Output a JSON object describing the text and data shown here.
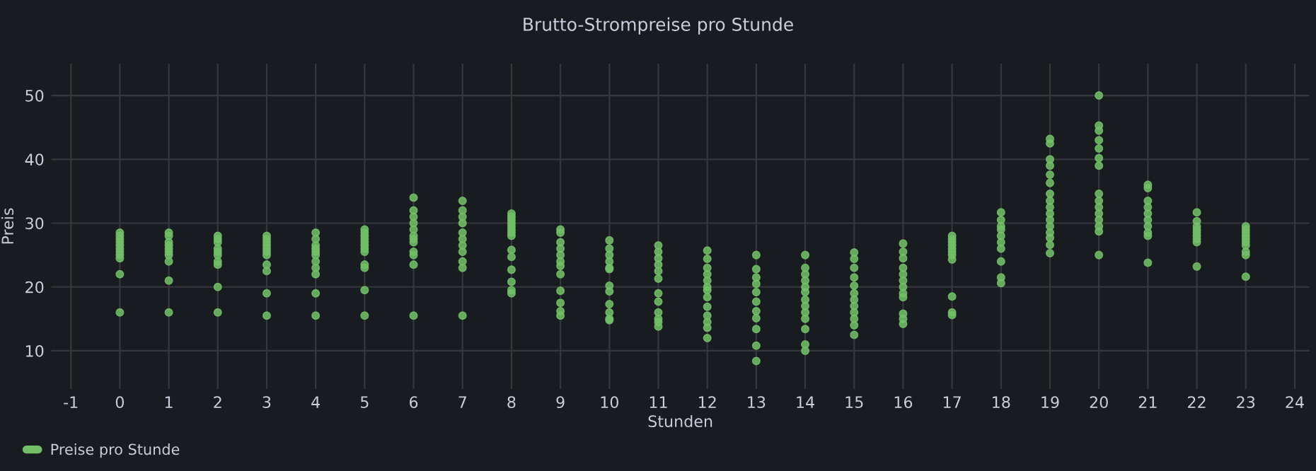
{
  "chart_data": {
    "type": "scatter",
    "title": "Brutto-Strompreise pro Stunde",
    "xlabel": "Stunden",
    "ylabel": "Preis",
    "xlim": [
      -1.4,
      24.3
    ],
    "ylim": [
      4,
      55
    ],
    "xticks": [
      -1,
      0,
      1,
      2,
      3,
      4,
      5,
      6,
      7,
      8,
      9,
      10,
      11,
      12,
      13,
      14,
      15,
      16,
      17,
      18,
      19,
      20,
      21,
      22,
      23,
      24
    ],
    "yticks": [
      10,
      20,
      30,
      40,
      50
    ],
    "grid": true,
    "legend": "bottom left",
    "marker": "circle",
    "series": [
      {
        "name": "Preise pro Stunde",
        "color": "#73bf69",
        "x": [
          0,
          0,
          0,
          0,
          0,
          0,
          0,
          0,
          0,
          0,
          0,
          1,
          1,
          1,
          1,
          1,
          1,
          1,
          1,
          1,
          1,
          2,
          2,
          2,
          2,
          2,
          2,
          2,
          2,
          2,
          2,
          3,
          3,
          3,
          3,
          3,
          3,
          3,
          3,
          3,
          3,
          3,
          4,
          4,
          4,
          4,
          4,
          4,
          4,
          4,
          4,
          4,
          4,
          5,
          5,
          5,
          5,
          5,
          5,
          5,
          5,
          5,
          5,
          5,
          5,
          6,
          6,
          6,
          6,
          6,
          6,
          6,
          6,
          6,
          6,
          6,
          6,
          7,
          7,
          7,
          7,
          7,
          7,
          7,
          7,
          7,
          7,
          7,
          8,
          8,
          8,
          8,
          8,
          8,
          8,
          8,
          8,
          8,
          8,
          8,
          8,
          8,
          9,
          9,
          9,
          9,
          9,
          9,
          9,
          9,
          9,
          9,
          9,
          9,
          10,
          10,
          10,
          10,
          10,
          10,
          10,
          10,
          10,
          10,
          10,
          10,
          11,
          11,
          11,
          11,
          11,
          11,
          11,
          11,
          11,
          11,
          11,
          11,
          12,
          12,
          12,
          12,
          12,
          12,
          12,
          12,
          12,
          12,
          12,
          12,
          12,
          13,
          13,
          13,
          13,
          13,
          13,
          13,
          13,
          13,
          13,
          13,
          14,
          14,
          14,
          14,
          14,
          14,
          14,
          14,
          14,
          14,
          14,
          14,
          14,
          15,
          15,
          15,
          15,
          15,
          15,
          15,
          15,
          15,
          15,
          15,
          15,
          16,
          16,
          16,
          16,
          16,
          16,
          16,
          16,
          16,
          16,
          16,
          16,
          17,
          17,
          17,
          17,
          17,
          17,
          17,
          17,
          17,
          17,
          17,
          18,
          18,
          18,
          18,
          18,
          18,
          18,
          18,
          18,
          18,
          19,
          19,
          19,
          19,
          19,
          19,
          19,
          19,
          19,
          19,
          19,
          19,
          19,
          19,
          19,
          19,
          20,
          20,
          20,
          20,
          20,
          20,
          20,
          20,
          20,
          20,
          20,
          20,
          20,
          20,
          20,
          21,
          21,
          21,
          21,
          21,
          21,
          21,
          21,
          21,
          21,
          22,
          22,
          22,
          22,
          22,
          22,
          22,
          22,
          22,
          23,
          23,
          23,
          23,
          23,
          23,
          23,
          23,
          23,
          23
        ],
        "values": [
          28.5,
          28,
          27.5,
          27,
          26.5,
          26,
          25.5,
          25,
          24.5,
          22,
          16,
          28.5,
          28,
          27,
          26.5,
          26,
          25.5,
          25,
          24,
          21,
          16,
          28,
          27.5,
          27,
          26,
          25.5,
          25,
          24,
          23.5,
          20,
          16,
          28,
          27.5,
          27,
          26.5,
          26,
          25.5,
          25,
          23.5,
          22.5,
          19,
          15.5,
          28.5,
          27.5,
          26.5,
          26,
          25.5,
          25,
          24,
          23,
          22,
          19,
          15.5,
          29,
          28.5,
          28,
          27.5,
          27,
          26.5,
          26,
          25.5,
          23.5,
          23,
          19.5,
          15.5,
          34,
          32,
          31,
          30,
          29,
          28,
          27.5,
          27,
          25.5,
          25,
          23.5,
          15.5,
          33.5,
          32,
          31,
          30,
          28.5,
          27.5,
          26.5,
          25.5,
          24,
          23,
          15.5,
          31.5,
          31,
          30.5,
          30,
          29.5,
          29,
          28.5,
          28,
          25.8,
          24.7,
          22.7,
          20.8,
          19.5,
          19,
          29,
          28.5,
          27,
          26,
          25,
          24,
          23.3,
          22,
          19.4,
          17.5,
          16.2,
          15.5,
          27.3,
          26,
          25,
          24,
          23,
          22.8,
          20.2,
          19.3,
          17.3,
          16,
          15,
          14.8,
          26.5,
          25.5,
          24.5,
          23.5,
          22.5,
          21.3,
          19,
          17.7,
          16,
          15,
          14.5,
          13.8,
          25.7,
          24.4,
          23,
          22,
          21,
          20,
          19.5,
          18.4,
          16.9,
          15.5,
          14.5,
          13.6,
          12,
          25,
          22.8,
          21.5,
          20.5,
          19.2,
          17.7,
          16.2,
          15.1,
          13.4,
          10.8,
          8.4,
          25,
          23,
          22,
          21,
          20,
          19.2,
          18,
          17,
          16,
          15,
          13.4,
          11,
          10,
          25.4,
          24.4,
          23,
          21.5,
          20.2,
          19,
          18,
          17,
          16,
          15,
          14,
          12.5,
          26.8,
          25.5,
          24.5,
          23,
          22,
          21,
          20,
          19,
          18.4,
          15.8,
          15,
          14.2,
          28,
          27.5,
          27,
          26.5,
          26,
          25.5,
          25,
          24.3,
          18.5,
          16,
          15.6,
          31.7,
          30.5,
          29.5,
          29,
          28,
          27,
          26,
          24,
          21.5,
          20.6,
          43.2,
          42.5,
          40,
          39,
          37.6,
          36.3,
          34.6,
          33.5,
          32.5,
          31.5,
          30.5,
          29.5,
          28.5,
          27.7,
          26.6,
          25.3,
          50,
          45.3,
          44.5,
          43,
          41.7,
          40.2,
          39,
          34.6,
          33.5,
          32.5,
          31.5,
          30.5,
          29.5,
          28.7,
          25,
          36,
          35.5,
          33.5,
          32.5,
          31.5,
          30.5,
          29.5,
          28.5,
          28,
          23.8,
          31.7,
          30.3,
          29.5,
          29,
          28.5,
          28,
          27.5,
          27,
          23.2,
          29.5,
          29,
          28.5,
          28,
          27.5,
          27,
          26.5,
          25.5,
          25,
          21.6
        ]
      }
    ]
  }
}
